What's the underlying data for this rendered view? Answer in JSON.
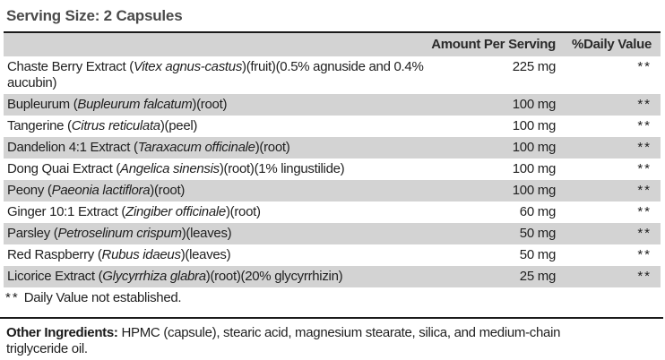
{
  "title": "Serving Size: 2 Capsules",
  "colors": {
    "row_shade": "#d3d3d3",
    "rule": "#1a1a1a",
    "text": "#1f1f1f",
    "title_text": "#4a4a4a"
  },
  "table": {
    "header": {
      "amount": "Amount Per Serving",
      "daily_value": "%Daily Value"
    },
    "rows": [
      {
        "name_pre": "Chaste Berry Extract (",
        "latin": "Vitex agnus-castus",
        "name_post": ")(fruit)(0.5% agnuside and 0.4% aucubin)",
        "amount": "225 mg",
        "daily_value": "**"
      },
      {
        "name_pre": "Bupleurum (",
        "latin": "Bupleurum falcatum",
        "name_post": ")(root)",
        "amount": "100 mg",
        "daily_value": "**"
      },
      {
        "name_pre": "Tangerine (",
        "latin": "Citrus reticulata",
        "name_post": ")(peel)",
        "amount": "100 mg",
        "daily_value": "**"
      },
      {
        "name_pre": "Dandelion 4:1 Extract (",
        "latin": "Taraxacum officinale",
        "name_post": ")(root)",
        "amount": "100 mg",
        "daily_value": "**"
      },
      {
        "name_pre": "Dong Quai Extract (",
        "latin": "Angelica sinensis",
        "name_post": ")(root)(1% lingustilide)",
        "amount": "100 mg",
        "daily_value": "**"
      },
      {
        "name_pre": "Peony (",
        "latin": "Paeonia lactiflora",
        "name_post": ")(root)",
        "amount": "100 mg",
        "daily_value": "**"
      },
      {
        "name_pre": "Ginger 10:1 Extract (",
        "latin": "Zingiber officinale",
        "name_post": ")(root)",
        "amount": "60 mg",
        "daily_value": "**"
      },
      {
        "name_pre": "Parsley (",
        "latin": "Petroselinum crispum",
        "name_post": ")(leaves)",
        "amount": "50 mg",
        "daily_value": "**"
      },
      {
        "name_pre": "Red Raspberry (",
        "latin": "Rubus idaeus",
        "name_post": ")(leaves)",
        "amount": "50 mg",
        "daily_value": "**"
      },
      {
        "name_pre": "Licorice Extract (",
        "latin": "Glycyrrhiza glabra",
        "name_post": ")(root)(20% glycyrrhizin)",
        "amount": "25 mg",
        "daily_value": "**"
      }
    ],
    "footnote_marker": "**",
    "footnote_text": "Daily Value not established."
  },
  "other_ingredients": {
    "label": "Other Ingredients:",
    "text": "HPMC (capsule), stearic acid, magnesium stearate, silica, and medium-chain triglyceride oil."
  }
}
